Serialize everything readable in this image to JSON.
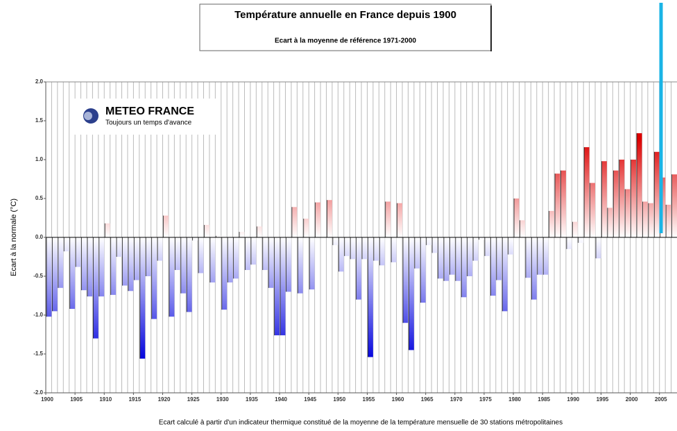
{
  "chart_data": {
    "type": "bar",
    "title": "Température annuelle en France depuis 1900",
    "subtitle": "Ecart à la moyenne de référence 1971-2000",
    "y_label": "Ecart à la normale (°C)",
    "footnote": "Ecart calculé à partir d'un indicateur thermique constitué de la moyenne de la température mensuelle de 30 stations métropolitaines",
    "logo": {
      "name": "METEO FRANCE",
      "tagline": "Toujours un temps d'avance"
    },
    "x": [
      1900,
      1901,
      1902,
      1903,
      1904,
      1905,
      1906,
      1907,
      1908,
      1909,
      1910,
      1911,
      1912,
      1913,
      1914,
      1915,
      1916,
      1917,
      1918,
      1919,
      1920,
      1921,
      1922,
      1923,
      1924,
      1925,
      1926,
      1927,
      1928,
      1929,
      1930,
      1931,
      1932,
      1933,
      1934,
      1935,
      1936,
      1937,
      1938,
      1939,
      1940,
      1941,
      1942,
      1943,
      1944,
      1945,
      1946,
      1947,
      1948,
      1949,
      1950,
      1951,
      1952,
      1953,
      1954,
      1955,
      1956,
      1957,
      1958,
      1959,
      1960,
      1961,
      1962,
      1963,
      1964,
      1965,
      1966,
      1967,
      1968,
      1969,
      1970,
      1971,
      1972,
      1973,
      1974,
      1975,
      1976,
      1977,
      1978,
      1979,
      1980,
      1981,
      1982,
      1983,
      1984,
      1985,
      1986,
      1987,
      1988,
      1989,
      1990,
      1991,
      1992,
      1993,
      1994,
      1995,
      1996,
      1997,
      1998,
      1999,
      2000,
      2001,
      2002,
      2003,
      2004,
      2005,
      2006,
      2007
    ],
    "values": [
      -1.02,
      -0.95,
      -0.65,
      -0.18,
      -0.92,
      -0.38,
      -0.68,
      -0.76,
      -1.3,
      -0.76,
      0.18,
      -0.74,
      -0.25,
      -0.62,
      -0.69,
      -0.55,
      -1.56,
      -0.5,
      -1.05,
      -0.3,
      0.28,
      -1.02,
      -0.42,
      -0.72,
      -0.96,
      -0.04,
      -0.46,
      0.16,
      -0.58,
      0.02,
      -0.93,
      -0.58,
      -0.53,
      0.07,
      -0.42,
      -0.35,
      0.14,
      -0.42,
      -0.65,
      -1.26,
      -1.26,
      -0.7,
      0.39,
      -0.72,
      0.24,
      -0.67,
      0.45,
      0.0,
      0.48,
      -0.1,
      -0.44,
      -0.24,
      -0.28,
      -0.8,
      -0.28,
      -1.54,
      -0.3,
      -0.36,
      0.46,
      -0.32,
      0.44,
      -1.1,
      -1.45,
      -0.4,
      -0.84,
      -0.1,
      -0.2,
      -0.53,
      -0.56,
      -0.48,
      -0.56,
      -0.77,
      -0.5,
      -0.3,
      -0.03,
      -0.24,
      -0.75,
      -0.55,
      -0.95,
      -0.22,
      0.5,
      0.22,
      -0.52,
      -0.8,
      -0.48,
      -0.48,
      0.34,
      0.82,
      0.86,
      -0.15,
      0.2,
      -0.07,
      1.16,
      0.7,
      -0.27,
      0.98,
      0.38,
      0.86,
      1.0,
      0.62,
      1.0,
      1.34,
      0.46,
      0.44,
      1.1,
      0.77,
      0.42,
      0.81
    ],
    "positive_color": "#dd0000",
    "negative_color": "#0000dd",
    "xlim": [
      1900,
      2008
    ],
    "xticks": [
      1900,
      1905,
      1910,
      1915,
      1920,
      1925,
      1930,
      1935,
      1940,
      1945,
      1950,
      1955,
      1960,
      1965,
      1970,
      1975,
      1980,
      1985,
      1990,
      1995,
      2000,
      2005
    ],
    "ylim": [
      -2,
      2
    ],
    "yticks": [
      {
        "value": 2,
        "label": "2.0"
      },
      {
        "value": 1.5,
        "label": "1.5"
      },
      {
        "value": 1,
        "label": "1.0"
      },
      {
        "value": 0.5,
        "label": "0.5"
      },
      {
        "value": 0,
        "label": "0.0"
      },
      {
        "value": -0.5,
        "label": "-0.5"
      },
      {
        "value": -1,
        "label": "-1.0"
      },
      {
        "value": -1.5,
        "label": "-1.5"
      },
      {
        "value": -2,
        "label": "-2.0"
      }
    ]
  }
}
